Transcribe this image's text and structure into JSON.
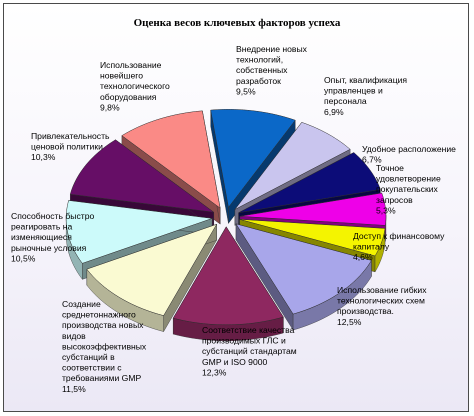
{
  "chart_data": {
    "type": "pie",
    "title": "Оценка весов ключевых факторов успеха",
    "unit": "%",
    "slices": [
      {
        "label": [
          "Внедрение новых",
          "технологий,",
          "собственных",
          "разработок"
        ],
        "value_label": "9,5%",
        "value": 9.5,
        "color": "#0b68c8"
      },
      {
        "label": [
          "Опыт, квалификация",
          "управленцев и",
          "персонала"
        ],
        "value_label": "6,9%",
        "value": 6.9,
        "color": "#c9c5ee"
      },
      {
        "label": [
          "Удобное расположение"
        ],
        "value_label": "6,7%",
        "value": 6.7,
        "color": "#0c0c78"
      },
      {
        "label": [
          "Точное",
          "удовлетворение",
          "покупательских",
          "запросов"
        ],
        "value_label": "5,3%",
        "value": 5.3,
        "color": "#ee00e8"
      },
      {
        "label": [
          "Доступ к финансовому",
          "капиталу"
        ],
        "value_label": "4,6%",
        "value": 4.6,
        "color": "#f4f400"
      },
      {
        "label": [
          "Использование  гибких",
          "технологических схем",
          "производства."
        ],
        "value_label": "12,5%",
        "value": 12.5,
        "color": "#a8a6ea"
      },
      {
        "label": [
          "Соответствие качества",
          "производимых ГЛС и",
          "субстанций стандартам",
          "GMP и ISO 9000"
        ],
        "value_label": "12,3%",
        "value": 12.3,
        "color": "#8e2860"
      },
      {
        "label": [
          "Создание",
          "среднетоннажного",
          "производства новых",
          "видов",
          "высокоэффективных",
          "субстанций в",
          "соответствии с",
          "требованиями GMP"
        ],
        "value_label": "11,5%",
        "value": 11.5,
        "color": "#fafad2"
      },
      {
        "label": [
          "Способность быстро",
          "реагировать на",
          "изменяющиеся",
          "рыночные условия"
        ],
        "value_label": "10,5%",
        "value": 10.5,
        "color": "#ccfafa"
      },
      {
        "label": [
          "Привлекательность",
          "ценовой политики"
        ],
        "value_label": "10,3%",
        "value": 10.3,
        "color": "#660e66"
      },
      {
        "label": [
          "Использование",
          "новейшего",
          "технологического",
          "оборудования"
        ],
        "value_label": "9,8%",
        "value": 9.8,
        "color": "#fa8a86"
      }
    ]
  }
}
